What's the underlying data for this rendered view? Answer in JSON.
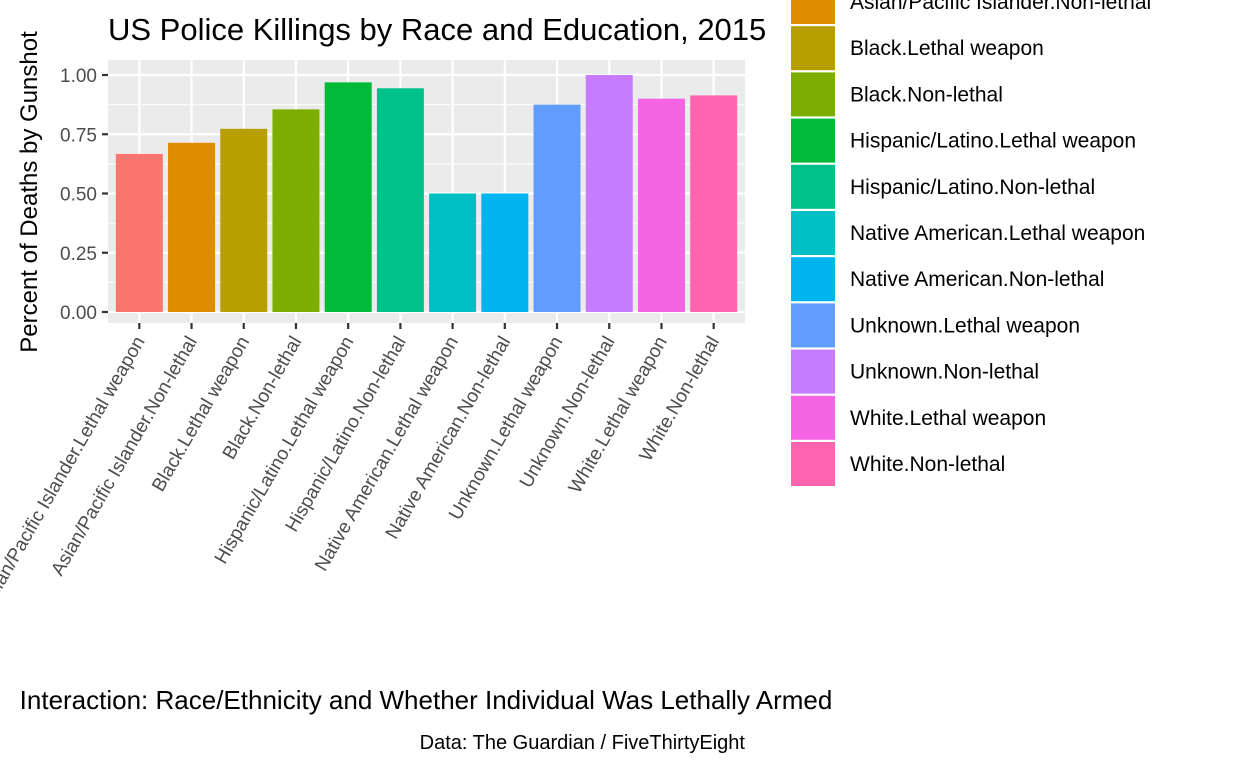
{
  "chart_data": {
    "type": "bar",
    "title": "US Police Killings by Race and Education, 2015",
    "xlabel": "Interaction: Race/Ethnicity and Whether Individual Was Lethally Armed",
    "ylabel": "Percent of Deaths by Gunshot",
    "caption": "Data: The Guardian / FiveThirtyEight",
    "ylim": [
      0,
      1.05
    ],
    "yticks": [
      "0.00",
      "0.25",
      "0.50",
      "0.75",
      "1.00"
    ],
    "ytick_values": [
      0,
      0.25,
      0.5,
      0.75,
      1.0
    ],
    "grid": true,
    "legend_position": "right",
    "categories": [
      "Asian/Pacific Islander.Lethal weapon",
      "Asian/Pacific Islander.Non-lethal",
      "Black.Lethal weapon",
      "Black.Non-lethal",
      "Hispanic/Latino.Lethal weapon",
      "Hispanic/Latino.Non-lethal",
      "Native American.Lethal weapon",
      "Native American.Non-lethal",
      "Unknown.Lethal weapon",
      "Unknown.Non-lethal",
      "White.Lethal weapon",
      "White.Non-lethal"
    ],
    "values": [
      0.667,
      0.714,
      0.773,
      0.855,
      0.969,
      0.944,
      0.5,
      0.5,
      0.875,
      1.0,
      0.9,
      0.914
    ],
    "colors": [
      "#F8766D",
      "#DE8C00",
      "#B79F00",
      "#7CAE00",
      "#00BA38",
      "#00C08B",
      "#00BFC4",
      "#00B4F0",
      "#619CFF",
      "#C77CFF",
      "#F564E3",
      "#FF64B0"
    ],
    "legend": [
      "Asian/Pacific Islander.Non-lethal",
      "Black.Lethal weapon",
      "Black.Non-lethal",
      "Hispanic/Latino.Lethal weapon",
      "Hispanic/Latino.Non-lethal",
      "Native American.Lethal weapon",
      "Native American.Non-lethal",
      "Unknown.Lethal weapon",
      "Unknown.Non-lethal",
      "White.Lethal weapon",
      "White.Non-lethal"
    ],
    "legend_colors": [
      "#DE8C00",
      "#B79F00",
      "#7CAE00",
      "#00BA38",
      "#00C08B",
      "#00BFC4",
      "#00B4F0",
      "#619CFF",
      "#C77CFF",
      "#F564E3",
      "#FF64B0"
    ],
    "panel_background": "#EBEBEB",
    "grid_color": "#FFFFFF"
  }
}
